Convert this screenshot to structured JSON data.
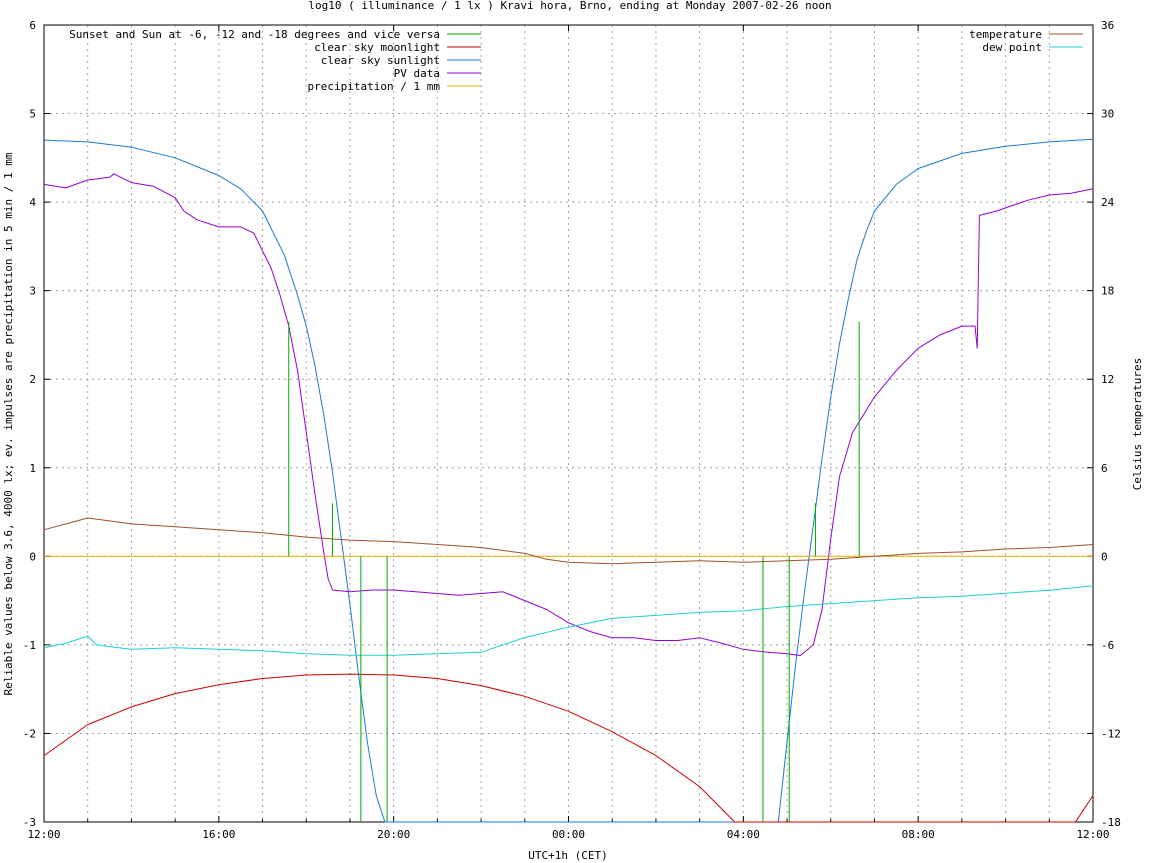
{
  "chart_data": {
    "type": "line",
    "title": "log10 ( illuminance / 1 lx ) Kravi hora, Brno, ending at Monday 2007-02-26 noon",
    "xlabel": "UTC+1h (CET)",
    "ylabel": "Reliable values below 3.6, 4000 lx; ev. impulses are precipitation in 5 min / 1 mm",
    "y2label": "Celsius temperatures",
    "xlim": [
      0,
      24
    ],
    "ylim": [
      -3,
      6
    ],
    "y2lim": [
      -18,
      36
    ],
    "x_ticks": [
      {
        "v": 0,
        "label": "12:00"
      },
      {
        "v": 4,
        "label": "16:00"
      },
      {
        "v": 8,
        "label": "20:00"
      },
      {
        "v": 12,
        "label": "00:00"
      },
      {
        "v": 16,
        "label": "04:00"
      },
      {
        "v": 20,
        "label": "08:00"
      },
      {
        "v": 24,
        "label": "12:00"
      }
    ],
    "y_ticks": [
      {
        "v": -3,
        "label": "-3"
      },
      {
        "v": -2,
        "label": "-2"
      },
      {
        "v": -1,
        "label": "-1"
      },
      {
        "v": 0,
        "label": "0"
      },
      {
        "v": 1,
        "label": "1"
      },
      {
        "v": 2,
        "label": "2"
      },
      {
        "v": 3,
        "label": "3"
      },
      {
        "v": 4,
        "label": "4"
      },
      {
        "v": 5,
        "label": "5"
      },
      {
        "v": 6,
        "label": "6"
      }
    ],
    "y2_ticks": [
      {
        "v": -18,
        "label": "-18"
      },
      {
        "v": -12,
        "label": "-12"
      },
      {
        "v": -6,
        "label": "-6"
      },
      {
        "v": 0,
        "label": "0"
      },
      {
        "v": 6,
        "label": "6"
      },
      {
        "v": 12,
        "label": "12"
      },
      {
        "v": 18,
        "label": "18"
      },
      {
        "v": 24,
        "label": "24"
      },
      {
        "v": 30,
        "label": "30"
      },
      {
        "v": 36,
        "label": "36"
      }
    ],
    "grid": true,
    "legend_left": [
      {
        "name": "Sunset and Sun at -6, -12 and -18 degrees and vice versa",
        "color": "#00aa00"
      },
      {
        "name": "clear sky moonlight",
        "color": "#cc0000"
      },
      {
        "name": "clear sky sunlight",
        "color": "#1a7ad4"
      },
      {
        "name": "PV data",
        "color": "#9400d3"
      },
      {
        "name": "precipitation / 1 mm",
        "color": "#f0b000"
      }
    ],
    "legend_right": [
      {
        "name": "temperature",
        "color": "#a0522d"
      },
      {
        "name": "dew point",
        "color": "#20d0d0"
      }
    ],
    "sun_events": [
      {
        "x": 5.6,
        "top": 2.65
      },
      {
        "x": 6.6,
        "top": 0.6
      },
      {
        "x": 7.25,
        "top": 0.0
      },
      {
        "x": 7.85,
        "top": 0.0
      },
      {
        "x": 16.45,
        "top": 0.0
      },
      {
        "x": 17.05,
        "top": 0.0
      },
      {
        "x": 17.65,
        "top": 0.6
      },
      {
        "x": 18.65,
        "top": 2.65
      }
    ],
    "series": [
      {
        "name": "clear sky sunlight",
        "color": "#1a7ad4",
        "points": [
          [
            0,
            4.7
          ],
          [
            1,
            4.68
          ],
          [
            2,
            4.62
          ],
          [
            3,
            4.5
          ],
          [
            4,
            4.3
          ],
          [
            4.5,
            4.15
          ],
          [
            5,
            3.9
          ],
          [
            5.5,
            3.4
          ],
          [
            5.8,
            2.95
          ],
          [
            6.0,
            2.6
          ],
          [
            6.2,
            2.15
          ],
          [
            6.4,
            1.6
          ],
          [
            6.6,
            0.95
          ],
          [
            6.8,
            0.2
          ],
          [
            7.0,
            -0.55
          ],
          [
            7.2,
            -1.35
          ],
          [
            7.4,
            -2.1
          ],
          [
            7.6,
            -2.7
          ],
          [
            7.8,
            -3.0
          ],
          [
            16.8,
            -3.0
          ],
          [
            17.0,
            -2.1
          ],
          [
            17.2,
            -1.2
          ],
          [
            17.4,
            -0.4
          ],
          [
            17.6,
            0.35
          ],
          [
            17.8,
            1.1
          ],
          [
            18.0,
            1.8
          ],
          [
            18.2,
            2.4
          ],
          [
            18.4,
            2.9
          ],
          [
            18.6,
            3.35
          ],
          [
            18.8,
            3.65
          ],
          [
            19.0,
            3.9
          ],
          [
            19.5,
            4.2
          ],
          [
            20,
            4.38
          ],
          [
            21,
            4.55
          ],
          [
            22,
            4.63
          ],
          [
            23,
            4.68
          ],
          [
            24,
            4.71
          ]
        ]
      },
      {
        "name": "clear sky moonlight",
        "color": "#cc0000",
        "points": [
          [
            0,
            -2.25
          ],
          [
            1,
            -1.9
          ],
          [
            2,
            -1.7
          ],
          [
            3,
            -1.55
          ],
          [
            4,
            -1.45
          ],
          [
            5,
            -1.38
          ],
          [
            6,
            -1.34
          ],
          [
            7,
            -1.33
          ],
          [
            8,
            -1.34
          ],
          [
            9,
            -1.38
          ],
          [
            10,
            -1.46
          ],
          [
            11,
            -1.58
          ],
          [
            12,
            -1.75
          ],
          [
            13,
            -1.98
          ],
          [
            14,
            -2.25
          ],
          [
            15,
            -2.6
          ],
          [
            15.6,
            -2.9
          ],
          [
            15.8,
            -3.0
          ],
          [
            23.6,
            -3.0
          ],
          [
            23.8,
            -2.85
          ],
          [
            24,
            -2.7
          ]
        ]
      },
      {
        "name": "PV data",
        "color": "#9400d3",
        "points": [
          [
            0,
            4.2
          ],
          [
            0.5,
            4.16
          ],
          [
            1,
            4.25
          ],
          [
            1.5,
            4.28
          ],
          [
            1.6,
            4.32
          ],
          [
            2,
            4.22
          ],
          [
            2.5,
            4.18
          ],
          [
            3,
            4.05
          ],
          [
            3.2,
            3.9
          ],
          [
            3.5,
            3.8
          ],
          [
            4,
            3.72
          ],
          [
            4.5,
            3.72
          ],
          [
            4.8,
            3.65
          ],
          [
            5.0,
            3.45
          ],
          [
            5.2,
            3.25
          ],
          [
            5.4,
            2.95
          ],
          [
            5.6,
            2.6
          ],
          [
            5.8,
            2.1
          ],
          [
            6.0,
            1.4
          ],
          [
            6.2,
            0.7
          ],
          [
            6.4,
            0.05
          ],
          [
            6.5,
            -0.25
          ],
          [
            6.6,
            -0.38
          ],
          [
            7,
            -0.4
          ],
          [
            7.5,
            -0.38
          ],
          [
            8,
            -0.38
          ],
          [
            8.5,
            -0.4
          ],
          [
            9,
            -0.42
          ],
          [
            9.5,
            -0.44
          ],
          [
            10,
            -0.42
          ],
          [
            10.5,
            -0.4
          ],
          [
            11,
            -0.5
          ],
          [
            11.5,
            -0.6
          ],
          [
            12,
            -0.75
          ],
          [
            12.5,
            -0.85
          ],
          [
            13,
            -0.92
          ],
          [
            13.5,
            -0.92
          ],
          [
            14,
            -0.95
          ],
          [
            14.5,
            -0.95
          ],
          [
            15,
            -0.92
          ],
          [
            15.5,
            -0.98
          ],
          [
            16,
            -1.05
          ],
          [
            16.5,
            -1.08
          ],
          [
            17,
            -1.1
          ],
          [
            17.3,
            -1.12
          ],
          [
            17.6,
            -1.0
          ],
          [
            17.8,
            -0.6
          ],
          [
            18.0,
            0.2
          ],
          [
            18.2,
            0.9
          ],
          [
            18.5,
            1.4
          ],
          [
            19,
            1.8
          ],
          [
            19.5,
            2.1
          ],
          [
            20,
            2.35
          ],
          [
            20.5,
            2.5
          ],
          [
            21,
            2.6
          ],
          [
            21.3,
            2.6
          ],
          [
            21.35,
            2.35
          ],
          [
            21.4,
            3.85
          ],
          [
            21.8,
            3.9
          ],
          [
            22.5,
            4.02
          ],
          [
            23,
            4.08
          ],
          [
            23.5,
            4.1
          ],
          [
            24,
            4.15
          ]
        ]
      },
      {
        "name": "precipitation / 1 mm",
        "color": "#f0b000",
        "points": [
          [
            0,
            0
          ],
          [
            24,
            0
          ]
        ]
      },
      {
        "name": "temperature",
        "axis": "y2",
        "color": "#a0522d",
        "points": [
          [
            0,
            1.8
          ],
          [
            0.5,
            2.2
          ],
          [
            1,
            2.6
          ],
          [
            1.5,
            2.4
          ],
          [
            2,
            2.2
          ],
          [
            3,
            2.0
          ],
          [
            4,
            1.8
          ],
          [
            5,
            1.6
          ],
          [
            6,
            1.3
          ],
          [
            7,
            1.1
          ],
          [
            8,
            1.0
          ],
          [
            9,
            0.8
          ],
          [
            10,
            0.6
          ],
          [
            11,
            0.2
          ],
          [
            11.5,
            -0.2
          ],
          [
            12,
            -0.4
          ],
          [
            13,
            -0.5
          ],
          [
            14,
            -0.4
          ],
          [
            15,
            -0.3
          ],
          [
            16,
            -0.4
          ],
          [
            17,
            -0.3
          ],
          [
            18,
            -0.2
          ],
          [
            19,
            0
          ],
          [
            20,
            0.2
          ],
          [
            21,
            0.3
          ],
          [
            22,
            0.5
          ],
          [
            23,
            0.6
          ],
          [
            24,
            0.8
          ]
        ]
      },
      {
        "name": "dew point",
        "axis": "y2",
        "color": "#20d0d0",
        "points": [
          [
            0,
            -6.2
          ],
          [
            0.5,
            -5.9
          ],
          [
            1,
            -5.4
          ],
          [
            1.2,
            -6.0
          ],
          [
            2,
            -6.3
          ],
          [
            3,
            -6.2
          ],
          [
            4,
            -6.3
          ],
          [
            5,
            -6.4
          ],
          [
            6,
            -6.6
          ],
          [
            7,
            -6.7
          ],
          [
            8,
            -6.7
          ],
          [
            9,
            -6.6
          ],
          [
            10,
            -6.5
          ],
          [
            11,
            -5.5
          ],
          [
            12,
            -4.8
          ],
          [
            13,
            -4.2
          ],
          [
            14,
            -4.0
          ],
          [
            15,
            -3.8
          ],
          [
            16,
            -3.7
          ],
          [
            17,
            -3.4
          ],
          [
            18,
            -3.2
          ],
          [
            19,
            -3.0
          ],
          [
            20,
            -2.8
          ],
          [
            21,
            -2.7
          ],
          [
            22,
            -2.5
          ],
          [
            23,
            -2.3
          ],
          [
            24,
            -2.0
          ]
        ]
      }
    ]
  }
}
